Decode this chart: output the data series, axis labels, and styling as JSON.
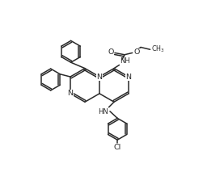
{
  "bg_color": "#ffffff",
  "line_color": "#2a2a2a",
  "line_width": 1.1,
  "figsize": [
    2.77,
    2.34
  ],
  "dpi": 100,
  "xlim": [
    0,
    10
  ],
  "ylim": [
    0,
    10
  ]
}
